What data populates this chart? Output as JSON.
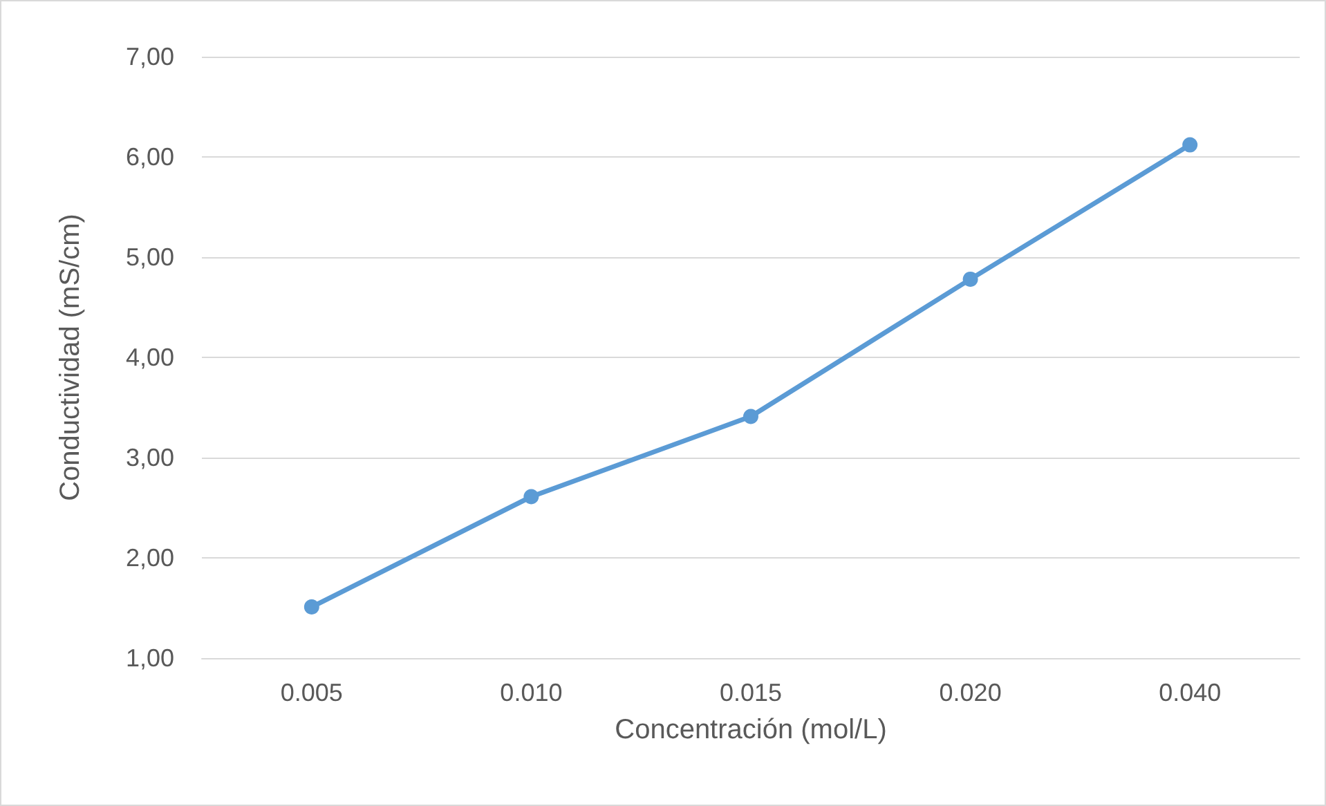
{
  "chart_data": {
    "type": "line",
    "xlabel": "Concentración (mol/L)",
    "ylabel": "Conductividad (mS/cm)",
    "categories": [
      "0.005",
      "0.010",
      "0.015",
      "0.020",
      "0.040"
    ],
    "series": [
      {
        "color": "#5b9bd5",
        "values": [
          1.51,
          2.61,
          3.41,
          4.78,
          6.12
        ]
      }
    ],
    "ylim": [
      1,
      7
    ],
    "yticks": [
      {
        "value": 1,
        "label": "1,00"
      },
      {
        "value": 2,
        "label": "2,00"
      },
      {
        "value": 3,
        "label": "3,00"
      },
      {
        "value": 4,
        "label": "4,00"
      },
      {
        "value": 5,
        "label": "5,00"
      },
      {
        "value": 6,
        "label": "6,00"
      },
      {
        "value": 7,
        "label": "7,00"
      }
    ],
    "grid": "y",
    "marker": "circle",
    "line_style": "solid"
  }
}
